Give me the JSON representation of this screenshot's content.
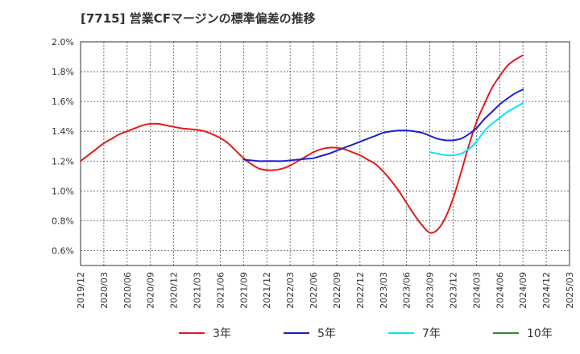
{
  "header": {
    "title": "[7715]  営業CFマージンの標準偏差の推移"
  },
  "chart_data": {
    "type": "line",
    "title": "[7715]  営業CFマージンの標準偏差の推移",
    "xlabel": "",
    "ylabel": "",
    "ylim": [
      0.5,
      2.0
    ],
    "y_ticks": [
      "0.6%",
      "0.8%",
      "1.0%",
      "1.2%",
      "1.4%",
      "1.6%",
      "1.8%",
      "2.0%"
    ],
    "y_tick_values": [
      0.6,
      0.8,
      1.0,
      1.2,
      1.4,
      1.6,
      1.8,
      2.0
    ],
    "x_ticks": [
      "2019/12",
      "2020/03",
      "2020/06",
      "2020/09",
      "2020/12",
      "2021/03",
      "2021/06",
      "2021/09",
      "2021/12",
      "2022/03",
      "2022/06",
      "2022/09",
      "2022/12",
      "2023/03",
      "2023/06",
      "2023/09",
      "2023/12",
      "2024/03",
      "2024/06",
      "2024/09",
      "2024/12",
      "2025/03"
    ],
    "grid": true,
    "legend_position": "bottom",
    "series": [
      {
        "name": "3年",
        "color": "#e41a1c",
        "x": [
          "2019/12",
          "2020/01",
          "2020/02",
          "2020/03",
          "2020/04",
          "2020/05",
          "2020/06",
          "2020/07",
          "2020/08",
          "2020/09",
          "2020/10",
          "2020/11",
          "2020/12",
          "2021/01",
          "2021/02",
          "2021/03",
          "2021/04",
          "2021/05",
          "2021/06",
          "2021/07",
          "2021/08",
          "2021/09",
          "2021/10",
          "2021/11",
          "2021/12",
          "2022/01",
          "2022/02",
          "2022/03",
          "2022/04",
          "2022/05",
          "2022/06",
          "2022/07",
          "2022/08",
          "2022/09",
          "2022/10",
          "2022/11",
          "2022/12",
          "2023/01",
          "2023/02",
          "2023/03",
          "2023/04",
          "2023/05",
          "2023/06",
          "2023/07",
          "2023/08",
          "2023/09",
          "2023/10",
          "2023/11",
          "2023/12",
          "2024/01",
          "2024/02",
          "2024/03",
          "2024/04",
          "2024/05",
          "2024/06",
          "2024/07",
          "2024/08",
          "2024/09"
        ],
        "values": [
          1.2,
          1.24,
          1.28,
          1.32,
          1.35,
          1.38,
          1.4,
          1.42,
          1.44,
          1.45,
          1.45,
          1.44,
          1.43,
          1.42,
          1.415,
          1.41,
          1.4,
          1.38,
          1.355,
          1.32,
          1.27,
          1.22,
          1.18,
          1.15,
          1.14,
          1.14,
          1.15,
          1.17,
          1.2,
          1.23,
          1.26,
          1.28,
          1.29,
          1.29,
          1.28,
          1.26,
          1.24,
          1.21,
          1.18,
          1.13,
          1.07,
          1.0,
          0.92,
          0.84,
          0.77,
          0.72,
          0.74,
          0.82,
          0.95,
          1.12,
          1.3,
          1.46,
          1.58,
          1.69,
          1.77,
          1.84,
          1.88,
          1.91
        ]
      },
      {
        "name": "5年",
        "color": "#1f1fcc",
        "x": [
          "2021/09",
          "2021/10",
          "2021/11",
          "2021/12",
          "2022/01",
          "2022/02",
          "2022/03",
          "2022/04",
          "2022/05",
          "2022/06",
          "2022/07",
          "2022/08",
          "2022/09",
          "2022/10",
          "2022/11",
          "2022/12",
          "2023/01",
          "2023/02",
          "2023/03",
          "2023/04",
          "2023/05",
          "2023/06",
          "2023/07",
          "2023/08",
          "2023/09",
          "2023/10",
          "2023/11",
          "2023/12",
          "2024/01",
          "2024/02",
          "2024/03",
          "2024/04",
          "2024/05",
          "2024/06",
          "2024/07",
          "2024/08",
          "2024/09"
        ],
        "values": [
          1.21,
          1.205,
          1.2,
          1.2,
          1.2,
          1.2,
          1.205,
          1.21,
          1.215,
          1.22,
          1.235,
          1.25,
          1.27,
          1.29,
          1.31,
          1.33,
          1.35,
          1.37,
          1.39,
          1.4,
          1.405,
          1.405,
          1.4,
          1.39,
          1.37,
          1.35,
          1.34,
          1.34,
          1.35,
          1.38,
          1.42,
          1.48,
          1.53,
          1.58,
          1.62,
          1.655,
          1.68
        ]
      },
      {
        "name": "7年",
        "color": "#00e5ff",
        "x": [
          "2023/09",
          "2023/10",
          "2023/11",
          "2023/12",
          "2024/01",
          "2024/02",
          "2024/03",
          "2024/04",
          "2024/05",
          "2024/06",
          "2024/07",
          "2024/08",
          "2024/09"
        ],
        "values": [
          1.26,
          1.25,
          1.24,
          1.24,
          1.25,
          1.28,
          1.33,
          1.4,
          1.45,
          1.49,
          1.53,
          1.56,
          1.59
        ]
      },
      {
        "name": "10年",
        "color": "#2e8b2e",
        "x": [],
        "values": []
      }
    ]
  }
}
